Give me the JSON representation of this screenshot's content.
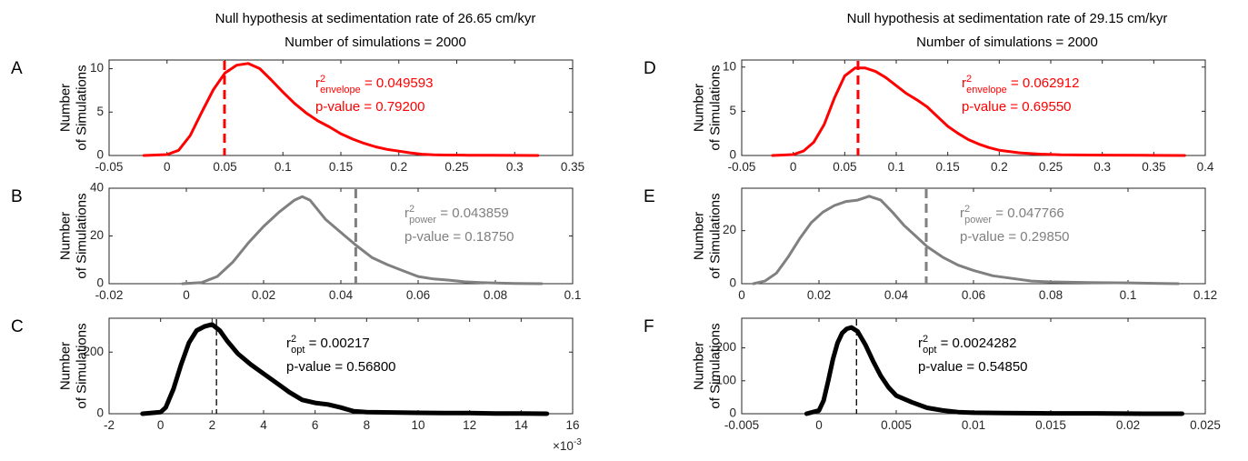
{
  "columns": [
    {
      "title_line1": "Null hypothesis at sedimentation rate of 26.65 cm/kyr",
      "title_line2": "Number of simulations = 2000"
    },
    {
      "title_line1": "Null hypothesis at sedimentation rate of 29.15 cm/kyr",
      "title_line2": "Number of simulations = 2000"
    }
  ],
  "chart_data": [
    {
      "panel": "A",
      "type": "line",
      "color": "#ff0000",
      "line_width": 3,
      "ylabel_line1": "Number",
      "ylabel_line2": "of Simulations",
      "xlim": [
        -0.05,
        0.35
      ],
      "ylim": [
        0,
        11
      ],
      "xticks": [
        -0.05,
        0,
        0.05,
        0.1,
        0.15,
        0.2,
        0.25,
        0.3,
        0.35
      ],
      "xtick_labels": [
        "-0.05",
        "0",
        "0.05",
        "0.1",
        "0.15",
        "0.2",
        "0.25",
        "0.3",
        "0.35"
      ],
      "yticks": [
        0,
        5,
        10
      ],
      "ytick_labels": [
        "0",
        "5",
        "10"
      ],
      "vline": {
        "x": 0.049593,
        "style": "dashed",
        "width": 3
      },
      "annotation": {
        "r_base": "r",
        "r_sup": "2",
        "r_sub": "envelope",
        "r_value": " = 0.049593",
        "p_text": "p-value = 0.79200"
      },
      "x": [
        -0.02,
        0,
        0.01,
        0.02,
        0.03,
        0.04,
        0.05,
        0.06,
        0.07,
        0.08,
        0.09,
        0.1,
        0.11,
        0.12,
        0.13,
        0.14,
        0.15,
        0.16,
        0.17,
        0.18,
        0.19,
        0.2,
        0.21,
        0.22,
        0.23,
        0.24,
        0.26,
        0.28,
        0.3,
        0.32
      ],
      "y": [
        0,
        0.1,
        0.6,
        2.3,
        5,
        7.6,
        9.5,
        10.4,
        10.6,
        10,
        8.7,
        7.3,
        6,
        4.9,
        4,
        3.3,
        2.5,
        1.9,
        1.4,
        1,
        0.7,
        0.5,
        0.3,
        0.15,
        0.08,
        0.05,
        0.03,
        0.02,
        0.01,
        0
      ]
    },
    {
      "panel": "B",
      "type": "line",
      "color": "#808080",
      "line_width": 3,
      "ylabel_line1": "Number",
      "ylabel_line2": "of Simulations",
      "xlim": [
        -0.02,
        0.1
      ],
      "ylim": [
        0,
        40
      ],
      "xticks": [
        -0.02,
        0,
        0.02,
        0.04,
        0.06,
        0.08,
        0.1
      ],
      "xtick_labels": [
        "-0.02",
        "0",
        "0.02",
        "0.04",
        "0.06",
        "0.08",
        "0.1"
      ],
      "yticks": [
        0,
        20,
        40
      ],
      "ytick_labels": [
        "0",
        "20",
        "40"
      ],
      "vline": {
        "x": 0.043859,
        "style": "dashed",
        "width": 3
      },
      "annotation": {
        "r_base": "r",
        "r_sup": "2",
        "r_sub": "power",
        "r_value": " = 0.043859",
        "p_text": "p-value = 0.18750"
      },
      "x": [
        -0.001,
        0.004,
        0.008,
        0.012,
        0.016,
        0.02,
        0.024,
        0.028,
        0.03,
        0.032,
        0.034,
        0.036,
        0.04,
        0.044,
        0.048,
        0.052,
        0.056,
        0.06,
        0.064,
        0.068,
        0.072,
        0.076,
        0.08,
        0.085,
        0.092
      ],
      "y": [
        0,
        0.5,
        3,
        9,
        17,
        24,
        30,
        35,
        36.5,
        35,
        31,
        27,
        21.5,
        16,
        11,
        8,
        5.5,
        3,
        2,
        1.5,
        0.8,
        0.5,
        0.3,
        0.1,
        0
      ]
    },
    {
      "panel": "C",
      "type": "line",
      "color": "#000000",
      "line_width": 5,
      "ylabel_line1": "Number",
      "ylabel_line2": "of Simulations",
      "xlim": [
        -0.002,
        0.016
      ],
      "ylim": [
        0,
        310
      ],
      "xticks": [
        -0.002,
        0,
        0.002,
        0.004,
        0.006,
        0.008,
        0.01,
        0.012,
        0.014,
        0.016
      ],
      "xtick_labels": [
        "-2",
        "0",
        "2",
        "4",
        "6",
        "8",
        "10",
        "12",
        "14",
        "16"
      ],
      "yticks": [
        0,
        200
      ],
      "ytick_labels": [
        "0",
        "200"
      ],
      "x_multiplier_base": "×10",
      "x_multiplier_exp": "-3",
      "vline": {
        "x": 0.00217,
        "style": "dashed",
        "width": 1.3
      },
      "annotation": {
        "r_base": "r",
        "r_sup": "2",
        "r_sub": "opt",
        "r_value": " = 0.00217",
        "p_text": "p-value = 0.56800"
      },
      "x": [
        -0.0007,
        0,
        0.0002,
        0.0005,
        0.0008,
        0.0011,
        0.0014,
        0.0017,
        0.002,
        0.0023,
        0.0026,
        0.003,
        0.0035,
        0.004,
        0.0045,
        0.005,
        0.0055,
        0.006,
        0.0065,
        0.007,
        0.0075,
        0.008,
        0.009,
        0.01,
        0.011,
        0.012,
        0.013,
        0.014,
        0.015
      ],
      "y": [
        0,
        5,
        20,
        80,
        160,
        230,
        270,
        283,
        290,
        270,
        235,
        195,
        160,
        130,
        100,
        70,
        45,
        35,
        30,
        20,
        8,
        5,
        4,
        3,
        2,
        2,
        1,
        1,
        0
      ]
    },
    {
      "panel": "D",
      "type": "line",
      "color": "#ff0000",
      "line_width": 3,
      "ylabel_line1": "Number",
      "ylabel_line2": "of Simulations",
      "xlim": [
        -0.05,
        0.4
      ],
      "ylim": [
        0,
        10.8
      ],
      "xticks": [
        -0.05,
        0,
        0.05,
        0.1,
        0.15,
        0.2,
        0.25,
        0.3,
        0.35,
        0.4
      ],
      "xtick_labels": [
        "-0.05",
        "0",
        "0.05",
        "0.1",
        "0.15",
        "0.2",
        "0.25",
        "0.3",
        "0.35",
        "0.4"
      ],
      "yticks": [
        0,
        5,
        10
      ],
      "ytick_labels": [
        "0",
        "5",
        "10"
      ],
      "vline": {
        "x": 0.062912,
        "style": "dashed",
        "width": 3
      },
      "annotation": {
        "r_base": "r",
        "r_sup": "2",
        "r_sub": "envelope",
        "r_value": " = 0.062912",
        "p_text": "p-value = 0.69550"
      },
      "x": [
        -0.02,
        0,
        0.01,
        0.02,
        0.03,
        0.04,
        0.05,
        0.06,
        0.07,
        0.08,
        0.09,
        0.1,
        0.11,
        0.12,
        0.13,
        0.14,
        0.15,
        0.16,
        0.17,
        0.18,
        0.19,
        0.2,
        0.22,
        0.24,
        0.26,
        0.3,
        0.34,
        0.38
      ],
      "y": [
        0,
        0.1,
        0.5,
        1.5,
        3.5,
        6.5,
        9,
        9.9,
        9.9,
        9.5,
        8.8,
        7.9,
        7,
        6.3,
        5.5,
        4.4,
        3.3,
        2.5,
        1.8,
        1.3,
        0.9,
        0.6,
        0.3,
        0.15,
        0.08,
        0.04,
        0.02,
        0
      ]
    },
    {
      "panel": "E",
      "type": "line",
      "color": "#808080",
      "line_width": 3,
      "ylabel_line1": "Number",
      "ylabel_line2": "of Simulations",
      "xlim": [
        0,
        0.12
      ],
      "ylim": [
        0,
        36
      ],
      "xticks": [
        0,
        0.02,
        0.04,
        0.06,
        0.08,
        0.1,
        0.12
      ],
      "xtick_labels": [
        "0",
        "0.02",
        "0.04",
        "0.06",
        "0.08",
        "0.1",
        "0.12"
      ],
      "yticks": [
        0,
        20
      ],
      "ytick_labels": [
        "0",
        "20"
      ],
      "vline": {
        "x": 0.047766,
        "style": "dashed",
        "width": 3
      },
      "annotation": {
        "r_base": "r",
        "r_sup": "2",
        "r_sub": "power",
        "r_value": " = 0.047766",
        "p_text": "p-value = 0.29850"
      },
      "x": [
        0.003,
        0.006,
        0.009,
        0.012,
        0.015,
        0.018,
        0.021,
        0.024,
        0.027,
        0.03,
        0.033,
        0.036,
        0.039,
        0.042,
        0.045,
        0.048,
        0.052,
        0.056,
        0.06,
        0.065,
        0.07,
        0.075,
        0.08,
        0.09,
        0.1,
        0.113
      ],
      "y": [
        0,
        1,
        4,
        10,
        17,
        23,
        27,
        29.5,
        31,
        31.5,
        33,
        31.5,
        27,
        22,
        18,
        14,
        10,
        7,
        5,
        3,
        2,
        1,
        0.7,
        0.4,
        0.3,
        0
      ]
    },
    {
      "panel": "F",
      "type": "line",
      "color": "#000000",
      "line_width": 5,
      "ylabel_line1": "Number",
      "ylabel_line2": "of Simulations",
      "xlim": [
        -0.005,
        0.025
      ],
      "ylim": [
        0,
        290
      ],
      "xticks": [
        -0.005,
        0,
        0.005,
        0.01,
        0.015,
        0.02,
        0.025
      ],
      "xtick_labels": [
        "-0.005",
        "0",
        "0.005",
        "0.01",
        "0.015",
        "0.02",
        "0.025"
      ],
      "yticks": [
        0,
        100,
        200
      ],
      "ytick_labels": [
        "0",
        "100",
        "200"
      ],
      "vline": {
        "x": 0.0024282,
        "style": "dashed",
        "width": 1.3
      },
      "annotation": {
        "r_base": "r",
        "r_sup": "2",
        "r_sub": "opt",
        "r_value": " = 0.0024282",
        "p_text": "p-value = 0.54850"
      },
      "x": [
        -0.0008,
        0,
        0.0003,
        0.0006,
        0.0009,
        0.0012,
        0.0015,
        0.0018,
        0.0021,
        0.0025,
        0.003,
        0.0035,
        0.004,
        0.0045,
        0.005,
        0.0055,
        0.006,
        0.007,
        0.008,
        0.009,
        0.01,
        0.012,
        0.015,
        0.018,
        0.021,
        0.0235
      ],
      "y": [
        0,
        10,
        40,
        100,
        165,
        215,
        245,
        258,
        262,
        250,
        210,
        160,
        115,
        80,
        55,
        45,
        35,
        18,
        10,
        5,
        3,
        2,
        1,
        1,
        0,
        0
      ]
    }
  ],
  "panel_labels": [
    "A",
    "B",
    "C",
    "D",
    "E",
    "F"
  ]
}
